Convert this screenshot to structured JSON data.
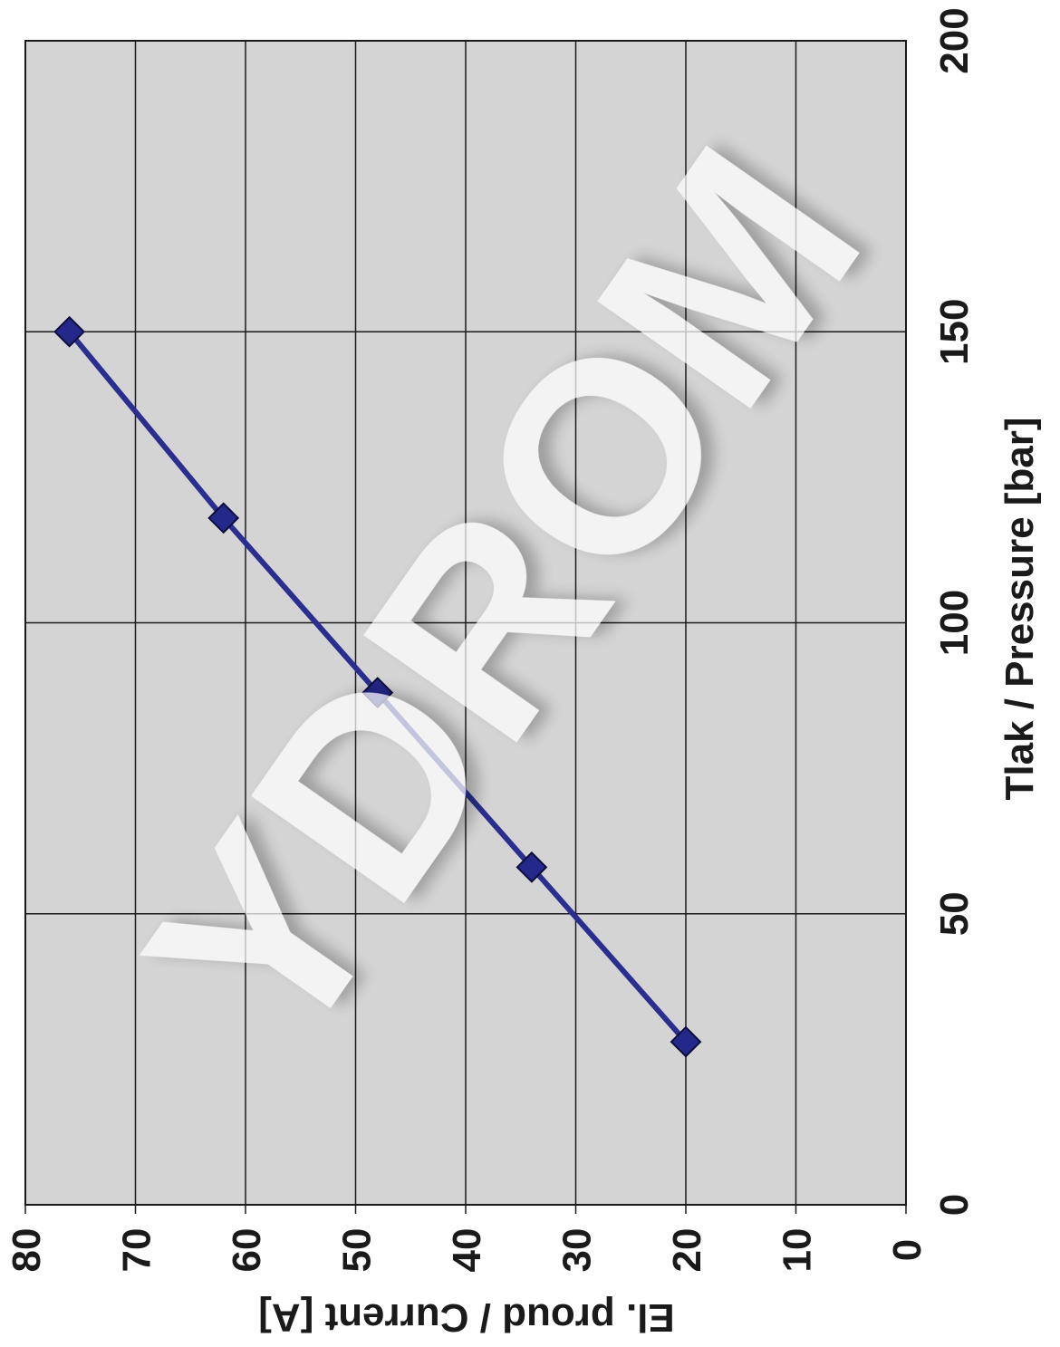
{
  "chart_data": {
    "type": "line",
    "orientation": "rotated 90 degrees clockwise",
    "xlabel": "Tlak / Pressure [bar]",
    "ylabel": "El. proud / Current [A]",
    "xlim": [
      0,
      200
    ],
    "ylim": [
      0,
      80
    ],
    "xticks": [
      "0",
      "50",
      "100",
      "150",
      "200"
    ],
    "yticks": [
      "0",
      "10",
      "20",
      "30",
      "40",
      "50",
      "60",
      "70",
      "80"
    ],
    "grid": true,
    "x": [
      28,
      58,
      88,
      118,
      150
    ],
    "series": [
      {
        "values": [
          20,
          34,
          48,
          62,
          76
        ]
      }
    ],
    "colors": {
      "line": "#2a2f8f",
      "marker": "#24288a",
      "plot_background": "#d4d4d4",
      "grid": "#1a1a1a"
    },
    "watermark": "YDROM"
  }
}
